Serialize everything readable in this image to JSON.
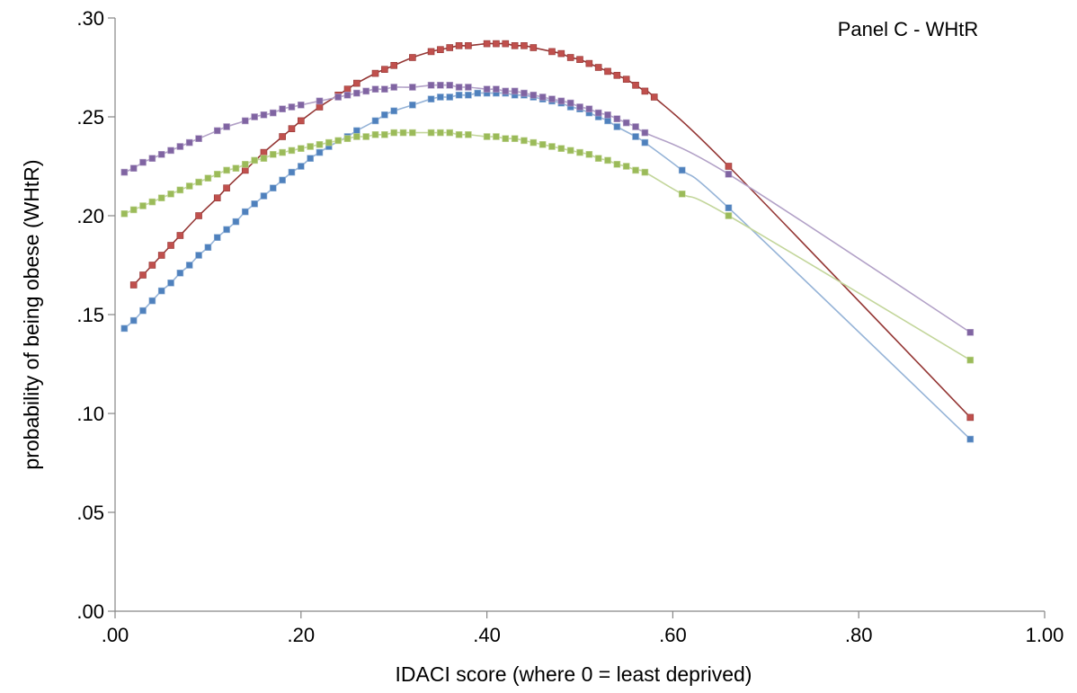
{
  "chart_data": {
    "type": "line",
    "title": "Panel C - WHtR",
    "xlabel": "IDACI score (where 0 = least deprived)",
    "ylabel": "probability of being obese (WHtR)",
    "xlim": [
      0,
      1
    ],
    "ylim": [
      0,
      0.3
    ],
    "x_ticks": [
      0,
      0.2,
      0.4,
      0.6,
      0.8,
      1.0
    ],
    "x_tick_labels": [
      ".00",
      ".20",
      ".40",
      ".60",
      ".80",
      "1.00"
    ],
    "y_ticks": [
      0,
      0.05,
      0.1,
      0.15,
      0.2,
      0.25,
      0.3
    ],
    "y_tick_labels": [
      ".00",
      ".05",
      ".10",
      ".15",
      ".20",
      ".25",
      ".30"
    ],
    "grid": false,
    "legend": "none",
    "series": [
      {
        "color": "#4f81bd",
        "line_color": "#95b3d7",
        "points": [
          [
            0.01,
            0.143
          ],
          [
            0.02,
            0.147
          ],
          [
            0.03,
            0.152
          ],
          [
            0.04,
            0.157
          ],
          [
            0.05,
            0.162
          ],
          [
            0.06,
            0.166
          ],
          [
            0.07,
            0.171
          ],
          [
            0.08,
            0.175
          ],
          [
            0.09,
            0.18
          ],
          [
            0.1,
            0.184
          ],
          [
            0.11,
            0.189
          ],
          [
            0.12,
            0.193
          ],
          [
            0.13,
            0.197
          ],
          [
            0.14,
            0.202
          ],
          [
            0.15,
            0.206
          ],
          [
            0.16,
            0.21
          ],
          [
            0.17,
            0.214
          ],
          [
            0.18,
            0.218
          ],
          [
            0.19,
            0.222
          ],
          [
            0.2,
            0.225
          ],
          [
            0.21,
            0.229
          ],
          [
            0.22,
            0.232
          ],
          [
            0.23,
            0.235
          ],
          [
            0.25,
            0.24
          ],
          [
            0.26,
            0.243
          ],
          [
            0.28,
            0.248
          ],
          [
            0.29,
            0.251
          ],
          [
            0.3,
            0.253
          ],
          [
            0.32,
            0.256
          ],
          [
            0.34,
            0.259
          ],
          [
            0.35,
            0.26
          ],
          [
            0.36,
            0.26
          ],
          [
            0.37,
            0.261
          ],
          [
            0.38,
            0.261
          ],
          [
            0.39,
            0.262
          ],
          [
            0.4,
            0.262
          ],
          [
            0.41,
            0.262
          ],
          [
            0.42,
            0.262
          ],
          [
            0.43,
            0.261
          ],
          [
            0.44,
            0.261
          ],
          [
            0.45,
            0.26
          ],
          [
            0.46,
            0.259
          ],
          [
            0.47,
            0.258
          ],
          [
            0.48,
            0.257
          ],
          [
            0.49,
            0.255
          ],
          [
            0.5,
            0.254
          ],
          [
            0.51,
            0.252
          ],
          [
            0.52,
            0.25
          ],
          [
            0.53,
            0.248
          ],
          [
            0.54,
            0.245
          ],
          [
            0.56,
            0.24
          ],
          [
            0.57,
            0.237
          ],
          [
            0.61,
            0.223
          ],
          [
            0.66,
            0.204
          ],
          [
            0.92,
            0.087
          ]
        ]
      },
      {
        "color": "#c0504d",
        "line_color": "#943634",
        "points": [
          [
            0.02,
            0.165
          ],
          [
            0.03,
            0.17
          ],
          [
            0.04,
            0.175
          ],
          [
            0.05,
            0.18
          ],
          [
            0.06,
            0.185
          ],
          [
            0.07,
            0.19
          ],
          [
            0.09,
            0.2
          ],
          [
            0.11,
            0.209
          ],
          [
            0.12,
            0.214
          ],
          [
            0.14,
            0.223
          ],
          [
            0.16,
            0.232
          ],
          [
            0.18,
            0.24
          ],
          [
            0.19,
            0.244
          ],
          [
            0.2,
            0.248
          ],
          [
            0.22,
            0.255
          ],
          [
            0.24,
            0.261
          ],
          [
            0.25,
            0.264
          ],
          [
            0.26,
            0.267
          ],
          [
            0.28,
            0.272
          ],
          [
            0.29,
            0.274
          ],
          [
            0.3,
            0.276
          ],
          [
            0.32,
            0.28
          ],
          [
            0.34,
            0.283
          ],
          [
            0.35,
            0.284
          ],
          [
            0.36,
            0.285
          ],
          [
            0.37,
            0.286
          ],
          [
            0.38,
            0.286
          ],
          [
            0.4,
            0.287
          ],
          [
            0.41,
            0.287
          ],
          [
            0.42,
            0.287
          ],
          [
            0.43,
            0.286
          ],
          [
            0.44,
            0.286
          ],
          [
            0.45,
            0.285
          ],
          [
            0.47,
            0.283
          ],
          [
            0.48,
            0.282
          ],
          [
            0.49,
            0.28
          ],
          [
            0.5,
            0.279
          ],
          [
            0.51,
            0.277
          ],
          [
            0.52,
            0.275
          ],
          [
            0.53,
            0.273
          ],
          [
            0.54,
            0.271
          ],
          [
            0.55,
            0.269
          ],
          [
            0.56,
            0.266
          ],
          [
            0.57,
            0.263
          ],
          [
            0.58,
            0.26
          ],
          [
            0.66,
            0.225
          ],
          [
            0.92,
            0.098
          ]
        ]
      },
      {
        "color": "#9bbb59",
        "line_color": "#c3d69b",
        "points": [
          [
            0.01,
            0.201
          ],
          [
            0.02,
            0.203
          ],
          [
            0.03,
            0.205
          ],
          [
            0.04,
            0.207
          ],
          [
            0.05,
            0.209
          ],
          [
            0.06,
            0.211
          ],
          [
            0.07,
            0.213
          ],
          [
            0.08,
            0.215
          ],
          [
            0.09,
            0.217
          ],
          [
            0.1,
            0.219
          ],
          [
            0.11,
            0.221
          ],
          [
            0.12,
            0.223
          ],
          [
            0.13,
            0.224
          ],
          [
            0.14,
            0.226
          ],
          [
            0.15,
            0.228
          ],
          [
            0.16,
            0.229
          ],
          [
            0.17,
            0.231
          ],
          [
            0.18,
            0.232
          ],
          [
            0.19,
            0.233
          ],
          [
            0.2,
            0.234
          ],
          [
            0.21,
            0.235
          ],
          [
            0.22,
            0.236
          ],
          [
            0.23,
            0.237
          ],
          [
            0.24,
            0.238
          ],
          [
            0.25,
            0.239
          ],
          [
            0.26,
            0.24
          ],
          [
            0.27,
            0.24
          ],
          [
            0.28,
            0.241
          ],
          [
            0.29,
            0.241
          ],
          [
            0.3,
            0.242
          ],
          [
            0.31,
            0.242
          ],
          [
            0.32,
            0.242
          ],
          [
            0.34,
            0.242
          ],
          [
            0.35,
            0.242
          ],
          [
            0.36,
            0.242
          ],
          [
            0.37,
            0.241
          ],
          [
            0.38,
            0.241
          ],
          [
            0.4,
            0.24
          ],
          [
            0.41,
            0.24
          ],
          [
            0.42,
            0.239
          ],
          [
            0.43,
            0.239
          ],
          [
            0.44,
            0.238
          ],
          [
            0.45,
            0.237
          ],
          [
            0.46,
            0.236
          ],
          [
            0.47,
            0.235
          ],
          [
            0.48,
            0.234
          ],
          [
            0.49,
            0.233
          ],
          [
            0.5,
            0.232
          ],
          [
            0.51,
            0.231
          ],
          [
            0.52,
            0.229
          ],
          [
            0.53,
            0.228
          ],
          [
            0.54,
            0.226
          ],
          [
            0.55,
            0.225
          ],
          [
            0.56,
            0.223
          ],
          [
            0.57,
            0.222
          ],
          [
            0.61,
            0.211
          ],
          [
            0.66,
            0.2
          ],
          [
            0.92,
            0.127
          ]
        ]
      },
      {
        "color": "#8064a2",
        "line_color": "#b2a1c7",
        "points": [
          [
            0.01,
            0.222
          ],
          [
            0.02,
            0.224
          ],
          [
            0.03,
            0.227
          ],
          [
            0.04,
            0.229
          ],
          [
            0.05,
            0.231
          ],
          [
            0.06,
            0.233
          ],
          [
            0.07,
            0.235
          ],
          [
            0.08,
            0.237
          ],
          [
            0.09,
            0.239
          ],
          [
            0.11,
            0.243
          ],
          [
            0.12,
            0.245
          ],
          [
            0.14,
            0.248
          ],
          [
            0.15,
            0.25
          ],
          [
            0.16,
            0.251
          ],
          [
            0.17,
            0.252
          ],
          [
            0.18,
            0.254
          ],
          [
            0.19,
            0.255
          ],
          [
            0.2,
            0.256
          ],
          [
            0.22,
            0.258
          ],
          [
            0.24,
            0.26
          ],
          [
            0.25,
            0.261
          ],
          [
            0.26,
            0.262
          ],
          [
            0.27,
            0.263
          ],
          [
            0.28,
            0.264
          ],
          [
            0.29,
            0.264
          ],
          [
            0.3,
            0.265
          ],
          [
            0.32,
            0.265
          ],
          [
            0.34,
            0.266
          ],
          [
            0.35,
            0.266
          ],
          [
            0.36,
            0.266
          ],
          [
            0.37,
            0.265
          ],
          [
            0.38,
            0.265
          ],
          [
            0.4,
            0.264
          ],
          [
            0.41,
            0.264
          ],
          [
            0.42,
            0.263
          ],
          [
            0.43,
            0.263
          ],
          [
            0.44,
            0.262
          ],
          [
            0.45,
            0.261
          ],
          [
            0.46,
            0.26
          ],
          [
            0.47,
            0.259
          ],
          [
            0.48,
            0.258
          ],
          [
            0.49,
            0.257
          ],
          [
            0.5,
            0.255
          ],
          [
            0.51,
            0.254
          ],
          [
            0.52,
            0.252
          ],
          [
            0.53,
            0.251
          ],
          [
            0.54,
            0.249
          ],
          [
            0.55,
            0.247
          ],
          [
            0.56,
            0.245
          ],
          [
            0.57,
            0.242
          ],
          [
            0.66,
            0.221
          ],
          [
            0.92,
            0.141
          ]
        ]
      }
    ]
  }
}
